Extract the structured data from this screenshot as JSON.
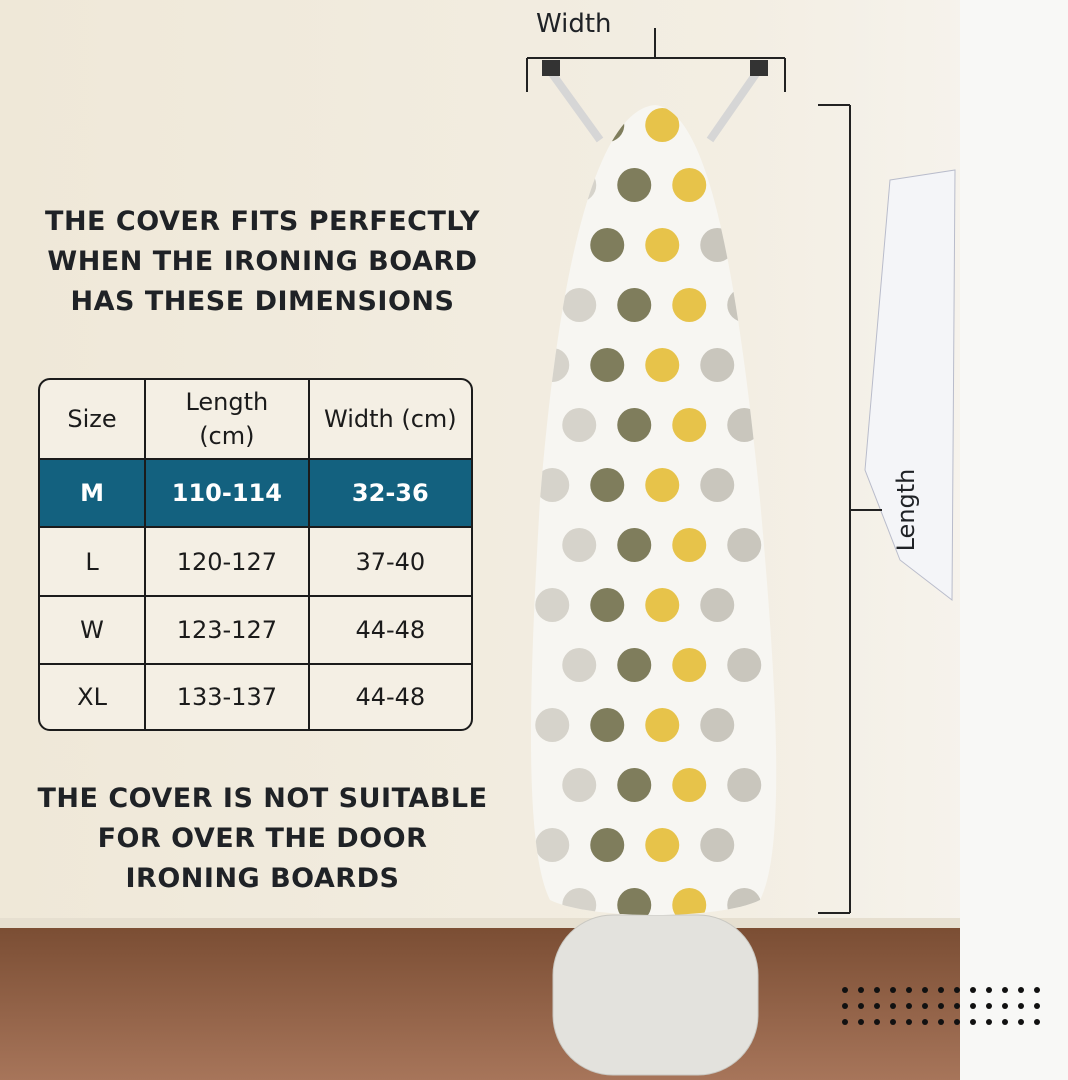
{
  "heading": {
    "lines": [
      "THE COVER FITS PERFECTLY",
      "WHEN THE IRONING BOARD",
      "HAS THESE DIMENSIONS"
    ]
  },
  "table": {
    "header": [
      "Size",
      "Length (cm)",
      "Width (cm)"
    ],
    "rows": [
      [
        "M",
        "110-114",
        "32-36"
      ],
      [
        "L",
        "120-127",
        "37-40"
      ],
      [
        "W",
        "123-127",
        "44-48"
      ],
      [
        "XL",
        "133-137",
        "44-48"
      ]
    ]
  },
  "note": {
    "lines": [
      "THE COVER IS NOT SUITABLE",
      "FOR OVER THE DOOR",
      "IRONING BOARDS"
    ]
  },
  "dimensions": {
    "width": "Width",
    "length": "Length"
  }
}
